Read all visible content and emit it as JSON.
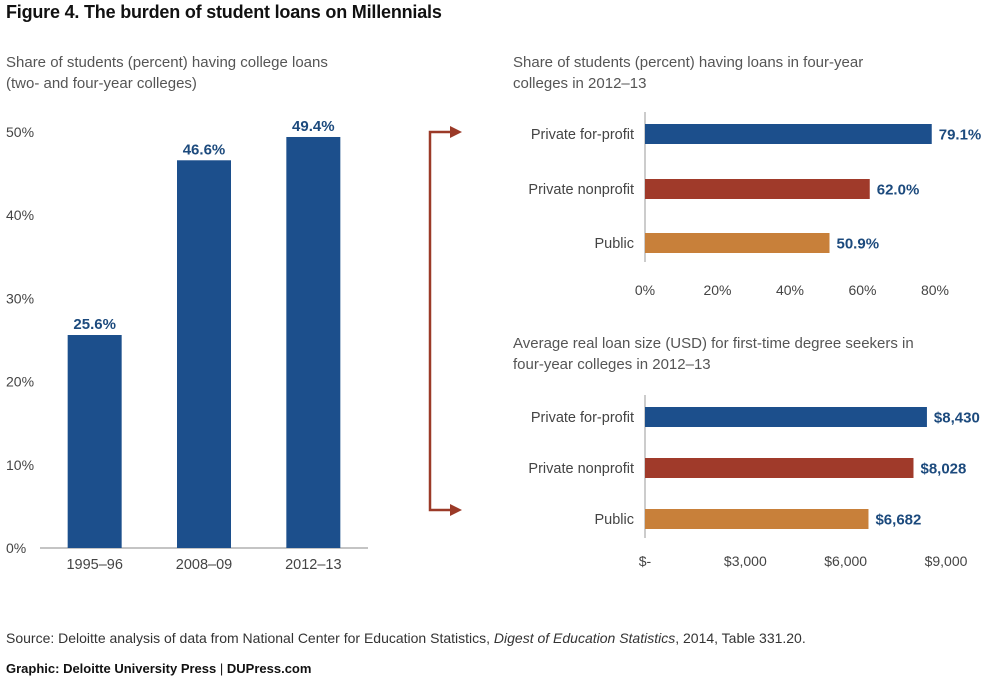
{
  "figure": {
    "title": "Figure 4. The burden of student loans on Millennials",
    "source_prefix": "Source: Deloitte analysis of data from National Center for Education Statistics, ",
    "source_italic": "Digest of Education Statistics",
    "source_suffix": ", 2014, Table 331.20.",
    "credit_left": "Graphic: Deloitte University Press",
    "credit_sep": "|",
    "credit_right": "DUPress.com"
  },
  "colors": {
    "blue": "#1c4f8c",
    "red": "#a03a2a",
    "orange": "#c8803a",
    "arrow": "#9b3a28",
    "label": "#1c4a7d"
  },
  "chart_data": [
    {
      "type": "bar",
      "orientation": "vertical",
      "title_lines": [
        "Share of students (percent) having college loans",
        "(two- and four-year colleges)"
      ],
      "categories": [
        "1995–96",
        "2008–09",
        "2012–13"
      ],
      "values": [
        25.6,
        46.6,
        49.4
      ],
      "data_labels": [
        "25.6%",
        "46.6%",
        "49.4%"
      ],
      "ylim": [
        0,
        50
      ],
      "yticks": [
        0,
        10,
        20,
        30,
        40,
        50
      ],
      "ytick_labels": [
        "0%",
        "10%",
        "20%",
        "30%",
        "40%",
        "50%"
      ],
      "color": "#1c4f8c",
      "grid": false
    },
    {
      "type": "bar",
      "orientation": "horizontal",
      "title_lines": [
        "Share of students (percent) having loans in four-year",
        "colleges in 2012–13"
      ],
      "categories": [
        "Private for-profit",
        "Private nonprofit",
        "Public"
      ],
      "values": [
        79.1,
        62.0,
        50.9
      ],
      "data_labels": [
        "79.1%",
        "62.0%",
        "50.9%"
      ],
      "xlim": [
        0,
        80
      ],
      "xticks": [
        0,
        20,
        40,
        60,
        80
      ],
      "xtick_labels": [
        "0%",
        "20%",
        "40%",
        "60%",
        "80%"
      ],
      "colors": [
        "#1c4f8c",
        "#a03a2a",
        "#c8803a"
      ],
      "grid": false
    },
    {
      "type": "bar",
      "orientation": "horizontal",
      "title_lines": [
        "Average real loan size (USD) for first-time degree seekers in",
        "four-year colleges in 2012–13"
      ],
      "categories": [
        "Private for-profit",
        "Private nonprofit",
        "Public"
      ],
      "values": [
        8430,
        8028,
        6682
      ],
      "data_labels": [
        "$8,430",
        "$8,028",
        "$6,682"
      ],
      "xlim": [
        0,
        9000
      ],
      "xticks": [
        0,
        3000,
        6000,
        9000
      ],
      "xtick_labels": [
        "$-",
        "$3,000",
        "$6,000",
        "$9,000"
      ],
      "colors": [
        "#1c4f8c",
        "#a03a2a",
        "#c8803a"
      ],
      "grid": false
    }
  ]
}
